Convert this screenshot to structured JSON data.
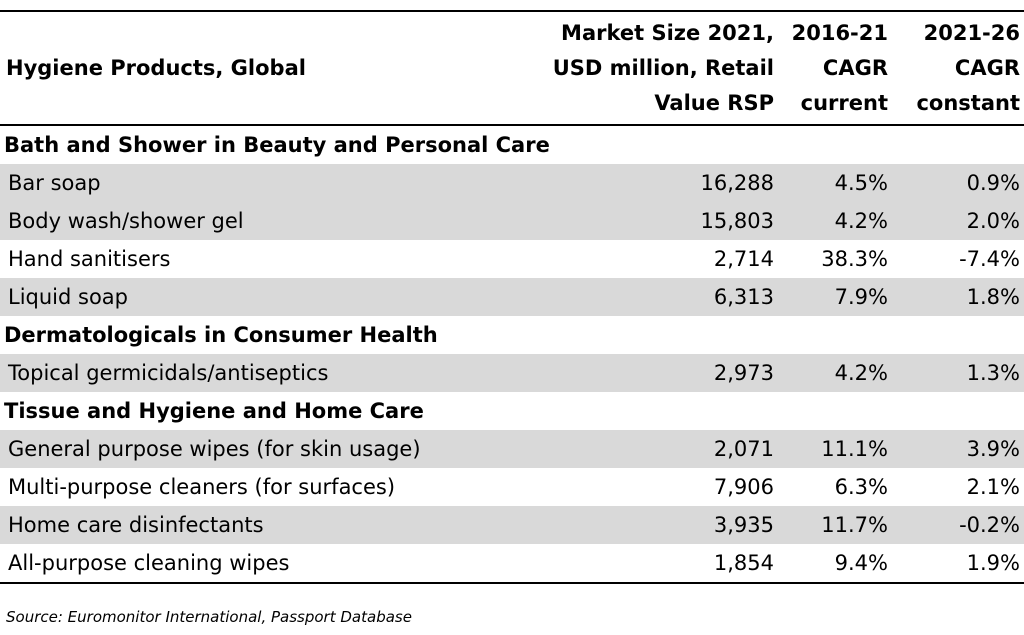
{
  "chart_data": {
    "type": "table",
    "columns": [
      "Hygiene Products, Global",
      "Market Size 2021,\nUSD million, Retail\nValue RSP",
      "2016-21\nCAGR\ncurrent",
      "2021-26\nCAGR\nconstant"
    ],
    "sections": [
      {
        "title": "Bath and Shower in Beauty and Personal Care",
        "rows": [
          {
            "label": "Bar soap",
            "values": [
              "16,288",
              "4.5%",
              "0.9%"
            ]
          },
          {
            "label": "Body wash/shower gel",
            "values": [
              "15,803",
              "4.2%",
              "2.0%"
            ]
          },
          {
            "label": "Hand sanitisers",
            "values": [
              "2,714",
              "38.3%",
              "-7.4%"
            ]
          },
          {
            "label": "Liquid soap",
            "values": [
              "6,313",
              "7.9%",
              "1.8%"
            ]
          }
        ]
      },
      {
        "title": "Dermatologicals in Consumer Health",
        "rows": [
          {
            "label": "Topical germicidals/antiseptics",
            "values": [
              "2,973",
              "4.2%",
              "1.3%"
            ]
          }
        ]
      },
      {
        "title": "Tissue and Hygiene and Home Care",
        "rows": [
          {
            "label": "General purpose wipes (for skin usage)",
            "values": [
              "2,071",
              "11.1%",
              "3.9%"
            ]
          },
          {
            "label": "Multi-purpose cleaners (for surfaces)",
            "values": [
              "7,906",
              "6.3%",
              "2.1%"
            ]
          },
          {
            "label": "Home care disinfectants",
            "values": [
              "3,935",
              "11.7%",
              "-0.2%"
            ]
          },
          {
            "label": "All-purpose cleaning wipes",
            "values": [
              "1,854",
              "9.4%",
              "1.9%"
            ]
          }
        ]
      }
    ],
    "source": "Source: Euromonitor International, Passport Database"
  },
  "colors": {
    "shade": "#d9d9d9",
    "rule": "#000000"
  }
}
